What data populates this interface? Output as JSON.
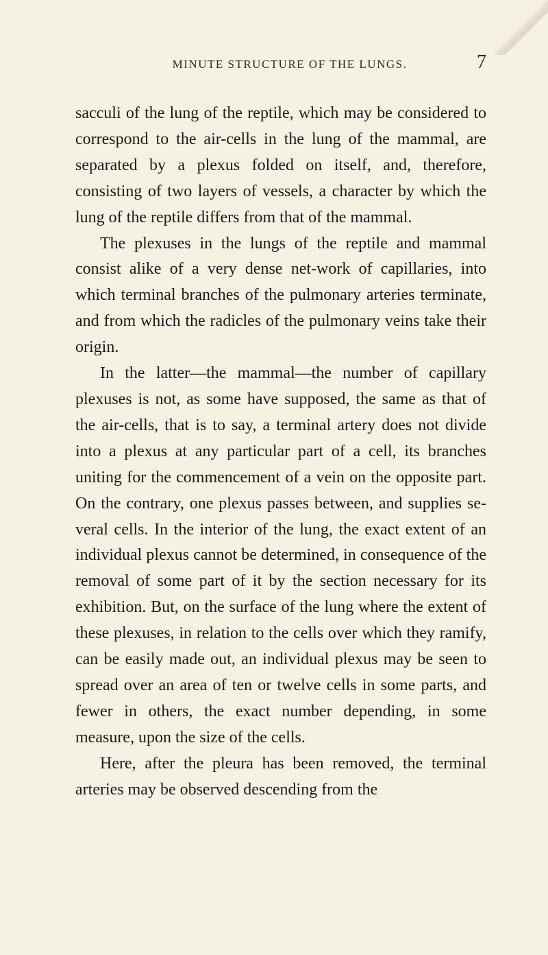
{
  "page": {
    "running_head": "MINUTE STRUCTURE OF THE LUNGS.",
    "number": "7",
    "background_color": "#f5f1e3",
    "text_color": "#1a1a18",
    "header_color": "#2a2a28",
    "body_font_size": 24,
    "header_font_size": 17,
    "page_number_font_size": 28,
    "line_height": 1.58,
    "paragraphs": [
      {
        "indent": false,
        "text": "sacculi of the lung of the reptile, which may be con­sidered to correspond to the air-cells in the lung of the mammal, are separated by a plexus folded on itself, and, therefore, consisting of two layers of vessels, a character by which the lung of the reptile differs from that of the mammal."
      },
      {
        "indent": true,
        "text": "The plexuses in the lungs of the reptile and mammal consist alike of a very dense net-work of capillaries, into which terminal branches of the pul­monary arteries terminate, and from which the radicles of the pulmonary veins take their origin."
      },
      {
        "indent": true,
        "text": "In the latter—the mammal—the number of ca­pillary plexuses is not, as some have supposed, the same as that of the air-cells, that is to say, a terminal artery does not divide into a plexus at any particular part of a cell, its branches uniting for the commence­ment of a vein on the opposite part. On the con­trary, one plexus passes between, and supplies se­veral cells. In the interior of the lung, the exact extent of an individual plexus cannot be determined, in consequence of the removal of some part of it by the section necessary for its exhibition. But, on the surface of the lung where the extent of these plexuses, in relation to the cells over which they ramify, can be easily made out, an individual plexus may be seen to spread over an area of ten or twelve cells in some parts, and fewer in others, the exact number depending, in some measure, upon the size of the cells."
      },
      {
        "indent": true,
        "text": "Here, after the pleura has been removed, the ter­minal arteries may be observed descending from the"
      }
    ]
  }
}
